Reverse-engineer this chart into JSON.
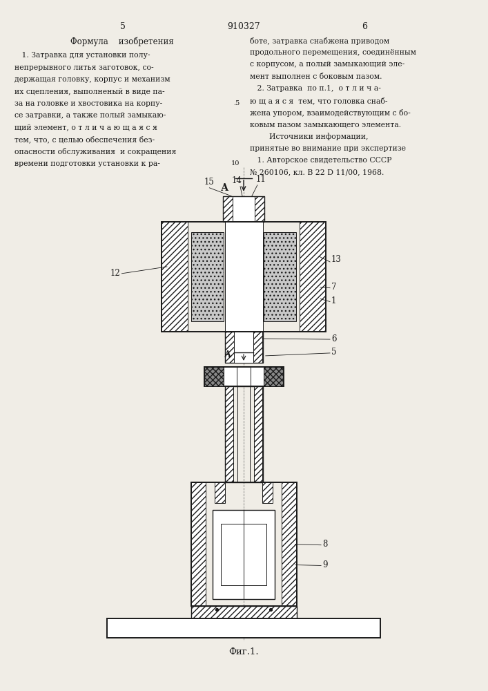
{
  "bg_color": "#f0ede6",
  "line_color": "#1a1a1a",
  "text_color": "#1a1a1a",
  "page_num_left": "5",
  "page_num_center": "910327",
  "page_num_right": "6",
  "left_header": "Формула    изобретения",
  "left_body_lines": [
    "   1. Затравка для установки полу-",
    "непрерывного литья заготовок, со-",
    "держащая головку, корпус и механизм",
    "их сцепления, выполненый в виде па-",
    "за на головке и хвостовика на корпу-",
    "се затравки, а также полый замыкаю-",
    "щий элемент, о т л и ч а ю щ а я с я",
    "тем, что, с целью обеспечения без-",
    "опасности обслуживания  и сокращения",
    "времени подготовки установки к ра-"
  ],
  "right_body_lines": [
    "боте, затравка снабжена приводом",
    "продольного перемещения, соединённым",
    "с корпусом, а полый замыкающий эле-",
    "мент выполнен с боковым пазом.",
    "   2. Затравка  по п.1,  о т л и ч а-",
    "ю щ а я с я  тем, что головка снаб-",
    "жена упором, взаимодействующим с бо-",
    "ковым пазом замыкающего элемента.",
    "        Источники информации,",
    "принятые во внимание при экспертизе",
    "   1. Авторское свидетельство СССР",
    "№ 260106, кл. В 22 D 11/00, 1968."
  ],
  "line_num_5": ".5",
  "line_num_10": "10",
  "fig_caption": "Фиг.1."
}
